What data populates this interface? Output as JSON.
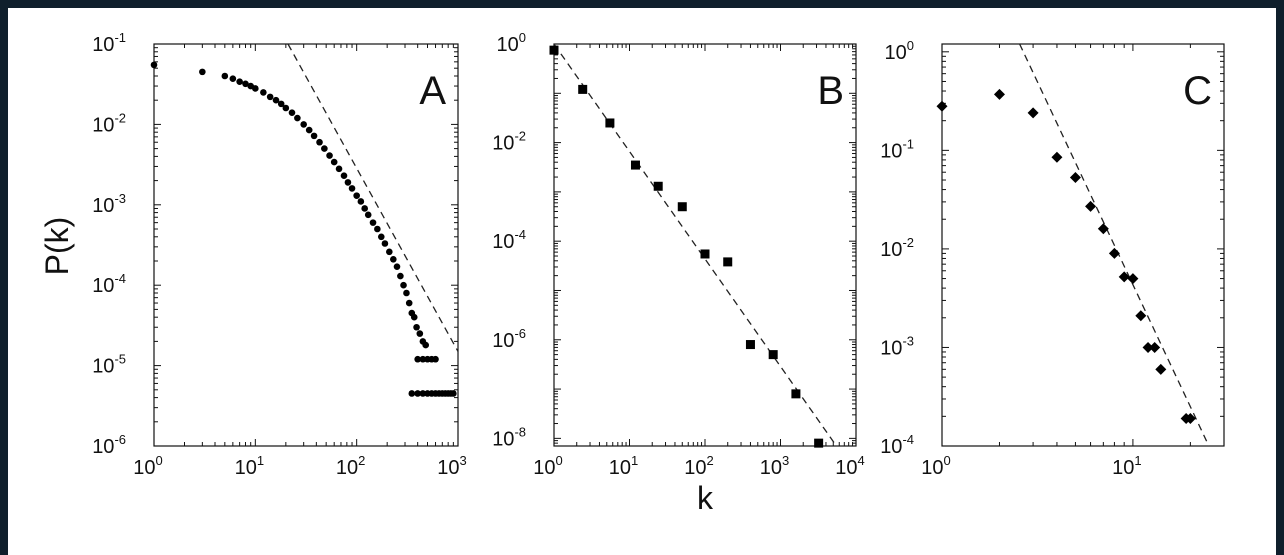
{
  "figure": {
    "ylabel": "P(k)",
    "xlabel": "k"
  },
  "chart_data": [
    {
      "panel": "A",
      "type": "scatter",
      "marker": "circle",
      "xscale": "log",
      "yscale": "log",
      "xlim": [
        1,
        1000
      ],
      "ylim": [
        1e-06,
        0.1
      ],
      "xticks": [
        1,
        10,
        100,
        1000
      ],
      "yticks": [
        1e-06,
        1e-05,
        0.0001,
        0.001,
        0.01,
        0.1
      ],
      "xlabel": "",
      "ylabel": "P(k)",
      "series": [
        {
          "points": [
            [
              1,
              0.055
            ],
            [
              3,
              0.045
            ],
            [
              5,
              0.04
            ],
            [
              6,
              0.037
            ],
            [
              7,
              0.034
            ],
            [
              8,
              0.032
            ],
            [
              9,
              0.03
            ],
            [
              10,
              0.028
            ],
            [
              12,
              0.025
            ],
            [
              14,
              0.022
            ],
            [
              16,
              0.02
            ],
            [
              18,
              0.018
            ],
            [
              20,
              0.016
            ],
            [
              23,
              0.014
            ],
            [
              26,
              0.012
            ],
            [
              30,
              0.01
            ],
            [
              34,
              0.0085
            ],
            [
              38,
              0.0072
            ],
            [
              43,
              0.006
            ],
            [
              48,
              0.005
            ],
            [
              54,
              0.0041
            ],
            [
              60,
              0.0034
            ],
            [
              67,
              0.0028
            ],
            [
              75,
              0.0023
            ],
            [
              82,
              0.0019
            ],
            [
              90,
              0.0016
            ],
            [
              100,
              0.0013
            ],
            [
              110,
              0.0011
            ],
            [
              120,
              0.0009
            ],
            [
              130,
              0.00075
            ],
            [
              145,
              0.0006
            ],
            [
              160,
              0.0005
            ],
            [
              175,
              0.0004
            ],
            [
              190,
              0.00033
            ],
            [
              210,
              0.00026
            ],
            [
              230,
              0.00021
            ],
            [
              250,
              0.00017
            ],
            [
              270,
              0.00013
            ],
            [
              290,
              0.0001
            ],
            [
              310,
              8e-05
            ],
            [
              330,
              6e-05
            ],
            [
              350,
              4.5e-05
            ],
            [
              370,
              4e-05
            ],
            [
              390,
              3e-05
            ],
            [
              420,
              2.5e-05
            ],
            [
              450,
              2e-05
            ],
            [
              480,
              1.8e-05
            ],
            [
              400,
              1.2e-05
            ],
            [
              450,
              1.2e-05
            ],
            [
              500,
              1.2e-05
            ],
            [
              550,
              1.2e-05
            ],
            [
              600,
              1.2e-05
            ],
            [
              350,
              4.5e-06
            ],
            [
              400,
              4.5e-06
            ],
            [
              450,
              4.5e-06
            ],
            [
              500,
              4.5e-06
            ],
            [
              550,
              4.5e-06
            ],
            [
              600,
              4.5e-06
            ],
            [
              650,
              4.5e-06
            ],
            [
              700,
              4.5e-06
            ],
            [
              750,
              4.5e-06
            ],
            [
              800,
              4.5e-06
            ],
            [
              850,
              4.5e-06
            ],
            [
              900,
              4.5e-06
            ]
          ]
        }
      ],
      "fit_line": [
        [
          21,
          0.1
        ],
        [
          1000,
          1.5e-05
        ]
      ]
    },
    {
      "panel": "B",
      "type": "scatter",
      "marker": "square",
      "xscale": "log",
      "yscale": "log",
      "xlim": [
        1,
        10000
      ],
      "ylim": [
        7e-09,
        1
      ],
      "xticks": [
        1,
        10,
        100,
        1000,
        10000
      ],
      "yticks": [
        1e-08,
        1e-06,
        0.0001,
        0.01,
        1
      ],
      "xlabel": "k",
      "ylabel": "",
      "series": [
        {
          "points": [
            [
              1,
              0.75
            ],
            [
              2.4,
              0.12
            ],
            [
              5.5,
              0.025
            ],
            [
              12,
              0.0035
            ],
            [
              24,
              0.0013
            ],
            [
              50,
              0.0005
            ],
            [
              100,
              5.5e-05
            ],
            [
              200,
              3.8e-05
            ],
            [
              400,
              8e-07
            ],
            [
              800,
              5e-07
            ],
            [
              1600,
              8e-08
            ],
            [
              3200,
              8e-09
            ]
          ]
        }
      ],
      "fit_line": [
        [
          1,
          1
        ],
        [
          5500,
          7e-09
        ]
      ]
    },
    {
      "panel": "C",
      "type": "scatter",
      "marker": "diamond",
      "xscale": "log",
      "yscale": "log",
      "xlim": [
        1,
        30
      ],
      "ylim": [
        0.0001,
        1.2
      ],
      "xticks": [
        1,
        10
      ],
      "yticks": [
        0.0001,
        0.001,
        0.01,
        0.1,
        1
      ],
      "xlabel": "",
      "ylabel": "",
      "series": [
        {
          "points": [
            [
              1,
              0.28
            ],
            [
              2,
              0.37
            ],
            [
              3,
              0.24
            ],
            [
              4,
              0.085
            ],
            [
              5,
              0.053
            ],
            [
              6,
              0.027
            ],
            [
              7,
              0.016
            ],
            [
              8,
              0.009
            ],
            [
              9,
              0.0052
            ],
            [
              10,
              0.005
            ],
            [
              11,
              0.0021
            ],
            [
              12,
              0.001
            ],
            [
              13,
              0.001
            ],
            [
              14,
              0.0006
            ],
            [
              19,
              0.00019
            ],
            [
              20,
              0.00019
            ]
          ]
        }
      ],
      "fit_line": [
        [
          2.55,
          1.2
        ],
        [
          25,
          0.0001
        ]
      ]
    }
  ]
}
